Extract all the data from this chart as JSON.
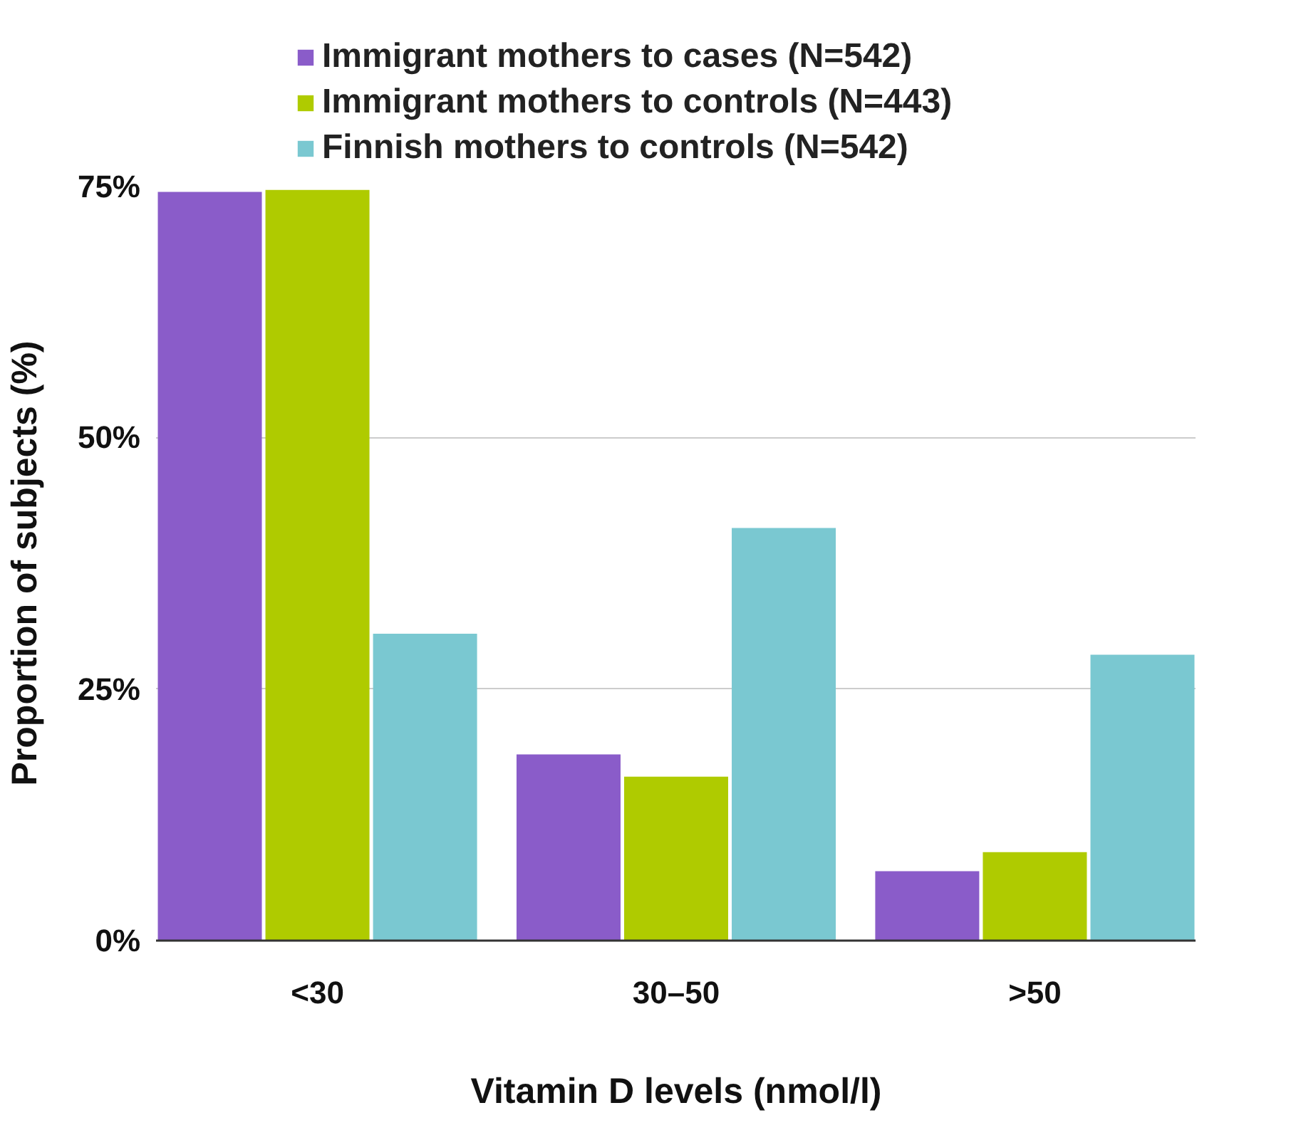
{
  "chart_data": {
    "type": "bar",
    "xlabel": "Vitamin D levels (nmol/l)",
    "ylabel": "Proportion of subjects (%)",
    "categories": [
      "<30",
      "30–50",
      ">50"
    ],
    "series": [
      {
        "name": "Immigrant mothers to cases (N=542)",
        "color": "#8a5cc9",
        "values": [
          74.4,
          18.5,
          6.9
        ]
      },
      {
        "name": "Immigrant mothers to controls (N=443)",
        "color": "#afcb00",
        "values": [
          74.6,
          16.3,
          8.8
        ]
      },
      {
        "name": "Finnish mothers to controls (N=542)",
        "color": "#7ac8d1",
        "values": [
          30.5,
          41.0,
          28.4
        ]
      }
    ],
    "ylim": [
      0,
      75
    ],
    "yticks": [
      {
        "value": 0,
        "label": "0%"
      },
      {
        "value": 25,
        "label": "25%"
      },
      {
        "value": 50,
        "label": "50%"
      },
      {
        "value": 75,
        "label": "75%"
      }
    ],
    "grid": "y",
    "legend": "top"
  }
}
